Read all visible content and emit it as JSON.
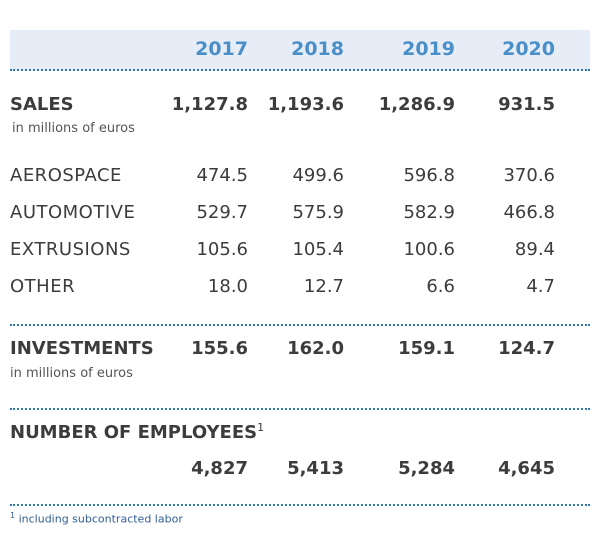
{
  "years": [
    "2017",
    "2018",
    "2019",
    "2020"
  ],
  "sales": {
    "label": "SALES",
    "unit": "in millions of euros",
    "values": [
      "1,127.8",
      "1,193.6",
      "1,286.9",
      "931.5"
    ]
  },
  "segments": [
    {
      "label": "AEROSPACE",
      "values": [
        "474.5",
        "499.6",
        "596.8",
        "370.6"
      ]
    },
    {
      "label": "AUTOMOTIVE",
      "values": [
        "529.7",
        "575.9",
        "582.9",
        "466.8"
      ]
    },
    {
      "label": "EXTRUSIONS",
      "values": [
        "105.6",
        "105.4",
        "100.6",
        "89.4"
      ]
    },
    {
      "label": "OTHER",
      "values": [
        "18.0",
        "12.7",
        "6.6",
        "4.7"
      ]
    }
  ],
  "investments": {
    "label": "INVESTMENTS",
    "unit": "in millions of euros",
    "values": [
      "155.6",
      "162.0",
      "159.1",
      "124.7"
    ]
  },
  "employees": {
    "label": "NUMBER OF EMPLOYEES",
    "footnote_mark": "1",
    "values": [
      "4,827",
      "5,413",
      "5,284",
      "4,645"
    ]
  },
  "footnote": {
    "mark": "1",
    "text": "including subcontracted labor"
  }
}
